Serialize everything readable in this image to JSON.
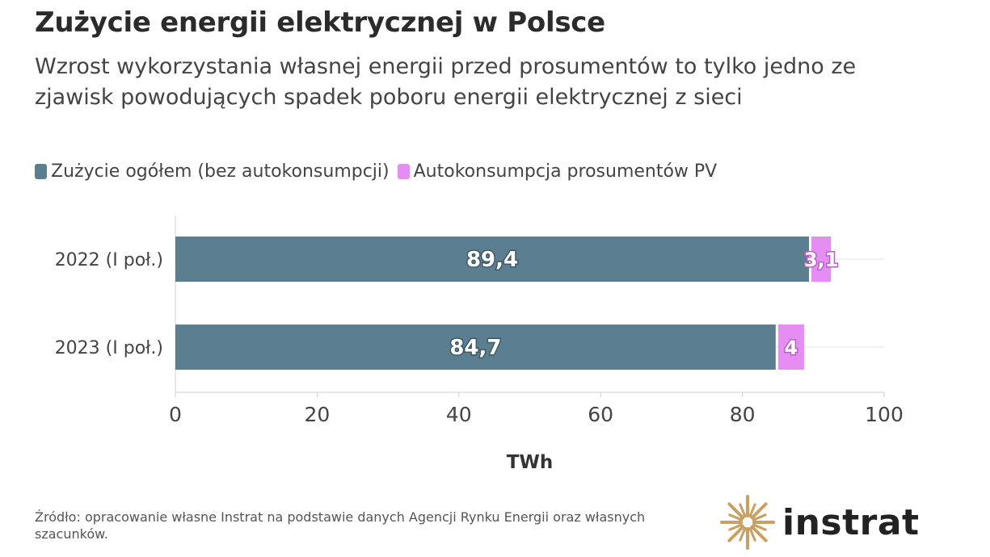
{
  "title": "Zużycie energii elektrycznej w Polsce",
  "subtitle": "Wzrost wykorzystania własnej energii przed prosumentów to tylko jedno ze zjawisk powodujących spadek poboru energii elektrycznej z sieci",
  "source": "Źródło: opracowanie własne Instrat na podstawie danych Agencji Rynku Energii oraz własnych szacunków.",
  "logo": {
    "text": "instrat",
    "icon": "instrat-sun-logo-icon",
    "color": "#c9a063"
  },
  "chart_data": {
    "type": "bar",
    "orientation": "horizontal",
    "stacked": true,
    "categories": [
      "2022 (I poł.)",
      "2023 (I poł.)"
    ],
    "series": [
      {
        "name": "Zużycie ogółem (bez autokonsumpcji)",
        "values": [
          89.4,
          84.7
        ],
        "labels": [
          "89,4",
          "84,7"
        ],
        "color": "#5b7f90"
      },
      {
        "name": "Autokonsumpcja prosumentów PV",
        "values": [
          3.1,
          4
        ],
        "labels": [
          "3,1",
          "4"
        ],
        "color": "#e58df2"
      }
    ],
    "xlabel": "TWh",
    "xlim": [
      0,
      100
    ],
    "xticks": [
      "0",
      "20",
      "40",
      "60",
      "80",
      "100"
    ],
    "xtick_values": [
      0,
      20,
      40,
      60,
      80,
      100
    ],
    "grid": true,
    "legend_position": "top-left"
  }
}
